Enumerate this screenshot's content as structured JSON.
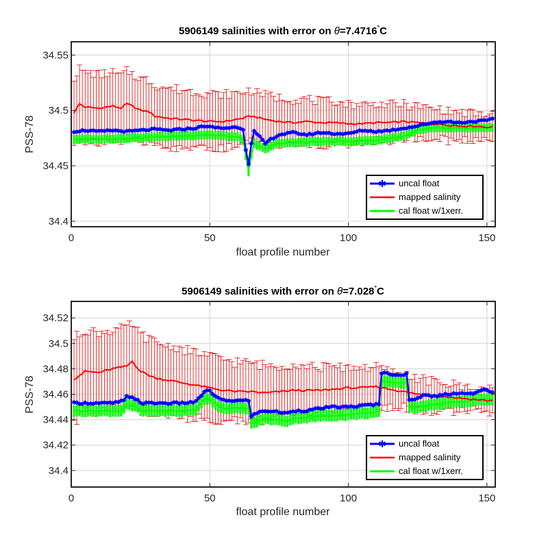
{
  "chart_data": [
    {
      "type": "line",
      "title_main": "5906149 salinities with error on ",
      "title_theta": "θ",
      "title_value": "=7.4716",
      "title_deg": "°",
      "title_unit": "C",
      "xlabel": "float profile number",
      "ylabel": "PSS-78",
      "xlim": [
        0,
        153
      ],
      "ylim": [
        34.395,
        34.562
      ],
      "xticks": [
        0,
        50,
        100,
        150
      ],
      "yticks": [
        34.4,
        34.45,
        34.5,
        34.55
      ],
      "ytick_labels": [
        "34.4",
        "34.45",
        "34.5",
        "34.55"
      ],
      "grid": true,
      "legend_position": "bottom-right",
      "series": [
        {
          "name": "uncal float",
          "color": "#0000ff",
          "marker": "asterisk",
          "anchors": [
            [
              1,
              34.481
            ],
            [
              5,
              34.482
            ],
            [
              10,
              34.481
            ],
            [
              15,
              34.482
            ],
            [
              20,
              34.481
            ],
            [
              25,
              34.482
            ],
            [
              30,
              34.483
            ],
            [
              35,
              34.482
            ],
            [
              40,
              34.483
            ],
            [
              45,
              34.484
            ],
            [
              48,
              34.486
            ],
            [
              50,
              34.485
            ],
            [
              55,
              34.484
            ],
            [
              60,
              34.485
            ],
            [
              62,
              34.483
            ],
            [
              63,
              34.465
            ],
            [
              64,
              34.452
            ],
            [
              65,
              34.47
            ],
            [
              66,
              34.481
            ],
            [
              68,
              34.476
            ],
            [
              70,
              34.47
            ],
            [
              72,
              34.474
            ],
            [
              75,
              34.478
            ],
            [
              80,
              34.48
            ],
            [
              85,
              34.478
            ],
            [
              90,
              34.48
            ],
            [
              95,
              34.479
            ],
            [
              100,
              34.479
            ],
            [
              105,
              34.482
            ],
            [
              110,
              34.481
            ],
            [
              115,
              34.482
            ],
            [
              120,
              34.484
            ],
            [
              125,
              34.486
            ],
            [
              130,
              34.489
            ],
            [
              135,
              34.49
            ],
            [
              140,
              34.489
            ],
            [
              145,
              34.49
            ],
            [
              150,
              34.491
            ],
            [
              152,
              34.492
            ]
          ]
        },
        {
          "name": "mapped salinity",
          "color": "#ff0000",
          "anchors": [
            [
              1,
              34.498
            ],
            [
              3,
              34.506
            ],
            [
              5,
              34.503
            ],
            [
              10,
              34.502
            ],
            [
              15,
              34.504
            ],
            [
              18,
              34.502
            ],
            [
              20,
              34.506
            ],
            [
              22,
              34.504
            ],
            [
              25,
              34.5
            ],
            [
              28,
              34.499
            ],
            [
              30,
              34.495
            ],
            [
              35,
              34.493
            ],
            [
              40,
              34.492
            ],
            [
              45,
              34.491
            ],
            [
              50,
              34.49
            ],
            [
              55,
              34.49
            ],
            [
              60,
              34.492
            ],
            [
              62,
              34.493
            ],
            [
              65,
              34.495
            ],
            [
              70,
              34.492
            ],
            [
              75,
              34.49
            ],
            [
              80,
              34.489
            ],
            [
              85,
              34.49
            ],
            [
              90,
              34.489
            ],
            [
              95,
              34.489
            ],
            [
              100,
              34.488
            ],
            [
              105,
              34.488
            ],
            [
              110,
              34.489
            ],
            [
              115,
              34.489
            ],
            [
              120,
              34.49
            ],
            [
              125,
              34.489
            ],
            [
              130,
              34.488
            ],
            [
              135,
              34.487
            ],
            [
              140,
              34.486
            ],
            [
              145,
              34.486
            ],
            [
              150,
              34.485
            ],
            [
              152,
              34.485
            ]
          ],
          "error_half_width_start": 0.032,
          "error_half_width_end": 0.011
        },
        {
          "name": "cal float w/1xerr.",
          "color": "#00ff00",
          "anchors": [
            [
              1,
              34.474
            ],
            [
              10,
              34.474
            ],
            [
              20,
              34.475
            ],
            [
              30,
              34.476
            ],
            [
              40,
              34.477
            ],
            [
              48,
              34.478
            ],
            [
              50,
              34.478
            ],
            [
              60,
              34.476
            ],
            [
              62,
              34.474
            ],
            [
              64,
              34.444
            ],
            [
              65,
              34.46
            ],
            [
              66,
              34.47
            ],
            [
              70,
              34.465
            ],
            [
              72,
              34.468
            ],
            [
              75,
              34.47
            ],
            [
              80,
              34.471
            ],
            [
              90,
              34.472
            ],
            [
              100,
              34.472
            ],
            [
              110,
              34.473
            ],
            [
              120,
              34.477
            ],
            [
              125,
              34.482
            ],
            [
              130,
              34.484
            ],
            [
              140,
              34.484
            ],
            [
              150,
              34.484
            ],
            [
              152,
              34.484
            ]
          ],
          "band_half_width": 0.004
        }
      ]
    },
    {
      "type": "line",
      "title_main": "5906149 salinities with error on ",
      "title_theta": "θ",
      "title_value": "=7.028",
      "title_deg": "°",
      "title_unit": "C",
      "xlabel": "float profile number",
      "ylabel": "PSS-78",
      "xlim": [
        0,
        153
      ],
      "ylim": [
        34.387,
        34.533
      ],
      "xticks": [
        0,
        50,
        100,
        150
      ],
      "yticks": [
        34.4,
        34.42,
        34.44,
        34.46,
        34.48,
        34.5,
        34.52
      ],
      "ytick_labels": [
        "34.4",
        "34.42",
        "34.44",
        "34.46",
        "34.48",
        "34.5",
        "34.52"
      ],
      "grid": true,
      "legend_position": "bottom-right",
      "series": [
        {
          "name": "uncal float",
          "color": "#0000ff",
          "marker": "asterisk",
          "anchors": [
            [
              1,
              34.453
            ],
            [
              10,
              34.453
            ],
            [
              15,
              34.453
            ],
            [
              19,
              34.455
            ],
            [
              20,
              34.458
            ],
            [
              22,
              34.457
            ],
            [
              24,
              34.456
            ],
            [
              25,
              34.453
            ],
            [
              30,
              34.453
            ],
            [
              35,
              34.453
            ],
            [
              40,
              34.453
            ],
            [
              45,
              34.454
            ],
            [
              48,
              34.462
            ],
            [
              50,
              34.463
            ],
            [
              52,
              34.458
            ],
            [
              55,
              34.455
            ],
            [
              60,
              34.455
            ],
            [
              64,
              34.455
            ],
            [
              65,
              34.443
            ],
            [
              68,
              34.446
            ],
            [
              70,
              34.447
            ],
            [
              75,
              34.446
            ],
            [
              78,
              34.445
            ],
            [
              80,
              34.447
            ],
            [
              85,
              34.447
            ],
            [
              90,
              34.449
            ],
            [
              95,
              34.45
            ],
            [
              100,
              34.45
            ],
            [
              105,
              34.451
            ],
            [
              110,
              34.452
            ],
            [
              111,
              34.452
            ],
            [
              112,
              34.477
            ],
            [
              115,
              34.476
            ],
            [
              120,
              34.475
            ],
            [
              121,
              34.476
            ],
            [
              122,
              34.455
            ],
            [
              125,
              34.457
            ],
            [
              128,
              34.46
            ],
            [
              130,
              34.458
            ],
            [
              135,
              34.46
            ],
            [
              140,
              34.461
            ],
            [
              145,
              34.46
            ],
            [
              148,
              34.463
            ],
            [
              150,
              34.464
            ],
            [
              152,
              34.461
            ]
          ]
        },
        {
          "name": "mapped salinity",
          "color": "#ff0000",
          "anchors": [
            [
              1,
              34.472
            ],
            [
              5,
              34.478
            ],
            [
              10,
              34.477
            ],
            [
              15,
              34.48
            ],
            [
              20,
              34.482
            ],
            [
              22,
              34.486
            ],
            [
              25,
              34.478
            ],
            [
              30,
              34.473
            ],
            [
              35,
              34.471
            ],
            [
              40,
              34.469
            ],
            [
              45,
              34.467
            ],
            [
              50,
              34.465
            ],
            [
              55,
              34.463
            ],
            [
              60,
              34.462
            ],
            [
              65,
              34.462
            ],
            [
              70,
              34.461
            ],
            [
              75,
              34.462
            ],
            [
              80,
              34.463
            ],
            [
              85,
              34.463
            ],
            [
              90,
              34.463
            ],
            [
              95,
              34.464
            ],
            [
              100,
              34.465
            ],
            [
              105,
              34.465
            ],
            [
              110,
              34.466
            ],
            [
              115,
              34.464
            ],
            [
              120,
              34.462
            ],
            [
              125,
              34.46
            ],
            [
              130,
              34.459
            ],
            [
              135,
              34.458
            ],
            [
              140,
              34.457
            ],
            [
              145,
              34.456
            ],
            [
              150,
              34.455
            ],
            [
              152,
              34.455
            ]
          ],
          "error_half_width_start": 0.033,
          "error_half_width_end": 0.008
        },
        {
          "name": "cal float w/1xerr.",
          "color": "#00ff00",
          "anchors": [
            [
              1,
              34.447
            ],
            [
              10,
              34.447
            ],
            [
              18,
              34.447
            ],
            [
              20,
              34.452
            ],
            [
              24,
              34.45
            ],
            [
              25,
              34.447
            ],
            [
              40,
              34.447
            ],
            [
              45,
              34.448
            ],
            [
              48,
              34.456
            ],
            [
              50,
              34.457
            ],
            [
              52,
              34.452
            ],
            [
              55,
              34.449
            ],
            [
              64,
              34.449
            ],
            [
              65,
              34.437
            ],
            [
              70,
              34.441
            ],
            [
              78,
              34.439
            ],
            [
              80,
              34.441
            ],
            [
              90,
              34.443
            ],
            [
              100,
              34.444
            ],
            [
              110,
              34.446
            ],
            [
              111,
              34.446
            ],
            [
              112,
              34.47
            ],
            [
              120,
              34.469
            ],
            [
              121,
              34.47
            ],
            [
              122,
              34.449
            ],
            [
              125,
              34.45
            ],
            [
              130,
              34.452
            ],
            [
              140,
              34.454
            ],
            [
              150,
              34.456
            ],
            [
              152,
              34.455
            ]
          ],
          "band_half_width": 0.0045
        }
      ]
    }
  ]
}
